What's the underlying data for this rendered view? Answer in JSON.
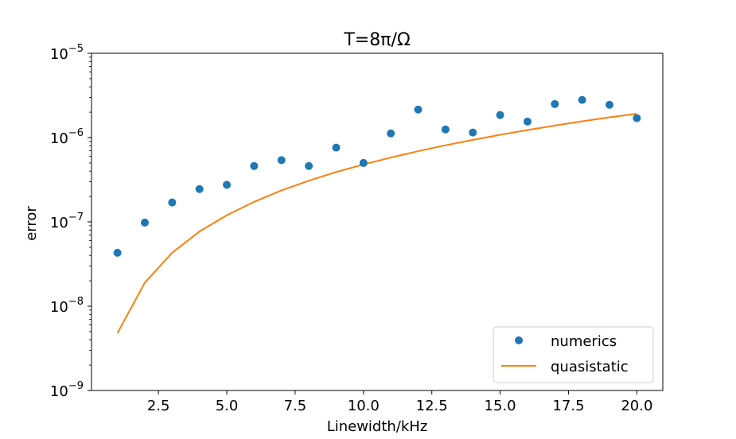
{
  "chart_data": {
    "type": "scatter",
    "title": "T=8π/Ω",
    "xlabel": "Linewidth/kHz",
    "ylabel": "error",
    "xlim": [
      0.05,
      20.95
    ],
    "ylim": [
      1e-09,
      1e-05
    ],
    "yscale": "log",
    "grid": false,
    "legend_position": "lower-right",
    "x_ticks": [
      2.5,
      5.0,
      7.5,
      10.0,
      12.5,
      15.0,
      17.5,
      20.0
    ],
    "x_tick_labels": [
      "2.5",
      "5.0",
      "7.5",
      "10.0",
      "12.5",
      "15.0",
      "17.5",
      "20.0"
    ],
    "y_ticks": [
      {
        "value": 1e-09,
        "base": "10",
        "exp": "−9"
      },
      {
        "value": 1e-08,
        "base": "10",
        "exp": "−8"
      },
      {
        "value": 1e-07,
        "base": "10",
        "exp": "−7"
      },
      {
        "value": 1e-06,
        "base": "10",
        "exp": "−6"
      },
      {
        "value": 1e-05,
        "base": "10",
        "exp": "−5"
      }
    ],
    "x": [
      1,
      2,
      3,
      4,
      5,
      6,
      7,
      8,
      9,
      10,
      11,
      12,
      13,
      14,
      15,
      16,
      17,
      18,
      19,
      20
    ],
    "series": [
      {
        "name": "numerics",
        "style": "markers",
        "color": "#1f77b4",
        "values": [
          4.3e-08,
          9.8e-08,
          1.7e-07,
          2.45e-07,
          2.75e-07,
          4.6e-07,
          5.4e-07,
          4.6e-07,
          7.6e-07,
          5e-07,
          1.12e-06,
          2.15e-06,
          1.25e-06,
          1.15e-06,
          1.85e-06,
          1.55e-06,
          2.5e-06,
          2.8e-06,
          2.45e-06,
          1.7e-06
        ]
      },
      {
        "name": "quasistatic",
        "style": "line",
        "color": "#ff7f0e",
        "values": [
          4.8e-09,
          1.9e-08,
          4.3e-08,
          7.7e-08,
          1.2e-07,
          1.73e-07,
          2.36e-07,
          3.08e-07,
          3.9e-07,
          4.8e-07,
          5.8e-07,
          6.9e-07,
          8.1e-07,
          9.4e-07,
          1.08e-06,
          1.23e-06,
          1.39e-06,
          1.56e-06,
          1.74e-06,
          1.92e-06
        ]
      }
    ]
  }
}
